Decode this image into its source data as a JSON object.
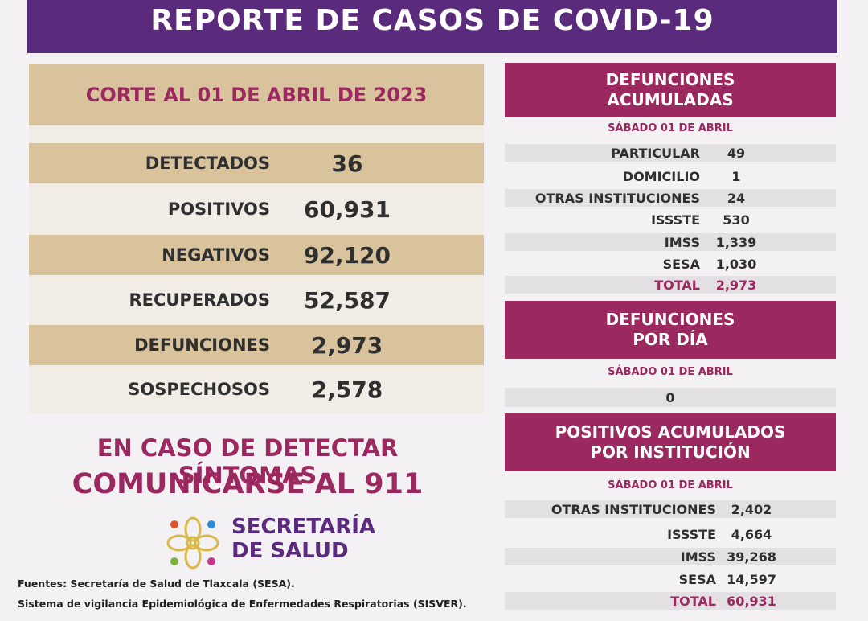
{
  "header": {
    "title": "REPORTE DE CASOS DE COVID-19"
  },
  "summary": {
    "cutoff": "CORTE AL 01 DE ABRIL DE 2023",
    "rows": [
      {
        "label": "DETECTADOS",
        "value": "36"
      },
      {
        "label": "POSITIVOS",
        "value": "60,931"
      },
      {
        "label": "NEGATIVOS",
        "value": "92,120"
      },
      {
        "label": "RECUPERADOS",
        "value": "52,587"
      },
      {
        "label": "DEFUNCIONES",
        "value": "2,973"
      },
      {
        "label": "SOSPECHOSOS",
        "value": "2,578"
      }
    ]
  },
  "promo": {
    "line1": "EN CASO DE DETECTAR SÍNTOMAS",
    "line2": "COMUNICARSE AL 911"
  },
  "logo": {
    "line1": "SECRETARÍA",
    "line2": "DE SALUD"
  },
  "sources": {
    "line1": "Fuentes:  Secretaría de Salud de Tlaxcala (SESA).",
    "line2": "Sistema de vigilancia Epidemiológica de Enfermedades Respiratorias (SISVER)."
  },
  "deaths_cumulative": {
    "title_line1": "DEFUNCIONES",
    "title_line2": "ACUMULADAS",
    "date": "SÁBADO 01 DE ABRIL",
    "rows": [
      {
        "label": "PARTICULAR",
        "value": "49"
      },
      {
        "label": "DOMICILIO",
        "value": "1"
      },
      {
        "label": "OTRAS INSTITUCIONES",
        "value": "24"
      },
      {
        "label": "ISSSTE",
        "value": "530"
      },
      {
        "label": "IMSS",
        "value": "1,339"
      },
      {
        "label": "SESA",
        "value": "1,030"
      }
    ],
    "total_label": "TOTAL",
    "total_value": "2,973"
  },
  "deaths_daily": {
    "title_line1": "DEFUNCIONES",
    "title_line2": "POR DÍA",
    "date": "SÁBADO 01  DE ABRIL",
    "value": "0"
  },
  "positives_by_institution": {
    "title_line1": "POSITIVOS ACUMULADOS",
    "title_line2": "POR INSTITUCIÓN",
    "date": "SÁBADO 01 DE ABRIL",
    "rows": [
      {
        "label": "OTRAS INSTITUCIONES",
        "value": "2,402"
      },
      {
        "label": "ISSSTE",
        "value": "4,664"
      },
      {
        "label": "IMSS",
        "value": "39,268"
      },
      {
        "label": "SESA",
        "value": "14,597"
      }
    ],
    "total_label": "TOTAL",
    "total_value": "60,931"
  },
  "colors": {
    "purple": "#5a2a7c",
    "magenta": "#9c2860",
    "tan": "#d9c39c"
  }
}
